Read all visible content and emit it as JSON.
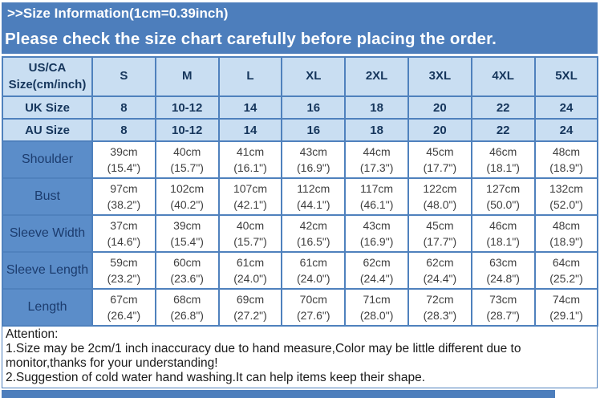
{
  "banner": {
    "title": ">>Size Information(1cm=0.39inch)",
    "notice": "Please check the size chart carefully before placing the order."
  },
  "table": {
    "corner_line1": "US/CA",
    "corner_line2": "Size(cm/inch)",
    "size_headers": [
      "S",
      "M",
      "L",
      "XL",
      "2XL",
      "3XL",
      "4XL",
      "5XL"
    ],
    "uk": {
      "label": "UK Size",
      "values": [
        "8",
        "10-12",
        "14",
        "16",
        "18",
        "20",
        "22",
        "24"
      ]
    },
    "au": {
      "label": "AU Size",
      "values": [
        "8",
        "10-12",
        "14",
        "16",
        "18",
        "20",
        "22",
        "24"
      ]
    },
    "measurements": [
      {
        "label": "Shoulder",
        "cm": [
          "39cm",
          "40cm",
          "41cm",
          "43cm",
          "44cm",
          "45cm",
          "46cm",
          "48cm"
        ],
        "inch": [
          "(15.4\")",
          "(15.7\")",
          "(16.1\")",
          "(16.9\")",
          "(17.3\")",
          "(17.7\")",
          "(18.1\")",
          "(18.9\")"
        ]
      },
      {
        "label": "Bust",
        "cm": [
          "97cm",
          "102cm",
          "107cm",
          "112cm",
          "117cm",
          "122cm",
          "127cm",
          "132cm"
        ],
        "inch": [
          "(38.2\")",
          "(40.2\")",
          "(42.1\")",
          "(44.1\")",
          "(46.1\")",
          "(48.0\")",
          "(50.0\")",
          "(52.0\")"
        ]
      },
      {
        "label": "Sleeve Width",
        "cm": [
          "37cm",
          "39cm",
          "40cm",
          "42cm",
          "43cm",
          "45cm",
          "46cm",
          "48cm"
        ],
        "inch": [
          "(14.6\")",
          "(15.4\")",
          "(15.7\")",
          "(16.5\")",
          "(16.9\")",
          "(17.7\")",
          "(18.1\")",
          "(18.9\")"
        ]
      },
      {
        "label": "Sleeve Length",
        "cm": [
          "59cm",
          "60cm",
          "61cm",
          "61cm",
          "62cm",
          "62cm",
          "63cm",
          "64cm"
        ],
        "inch": [
          "(23.2\")",
          "(23.6\")",
          "(24.0\")",
          "(24.0\")",
          "(24.4\")",
          "(24.4\")",
          "(24.8\")",
          "(25.2\")"
        ]
      },
      {
        "label": "Length",
        "cm": [
          "67cm",
          "68cm",
          "69cm",
          "70cm",
          "71cm",
          "72cm",
          "73cm",
          "74cm"
        ],
        "inch": [
          "(26.4\")",
          "(26.8\")",
          "(27.2\")",
          "(27.6\")",
          "(28.0\")",
          "(28.3\")",
          "(28.7\")",
          "(29.1\")"
        ]
      }
    ]
  },
  "attention": {
    "lines": [
      "Attention:",
      "1.Size may be 2cm/1 inch inaccuracy due to hand measure,Color may be little different due to monitor,thanks for your understanding!",
      "2.Suggestion of cold water hand washing.It can help items keep their shape."
    ]
  },
  "colors": {
    "banner_blue": "#4d7ebc",
    "label_cell_blue": "#5b8dc9",
    "light_cell_blue": "#c9def2",
    "grid_blue": "#4f81bd",
    "header_text_navy": "#16365c",
    "data_text_gray": "#3f3f3f"
  }
}
